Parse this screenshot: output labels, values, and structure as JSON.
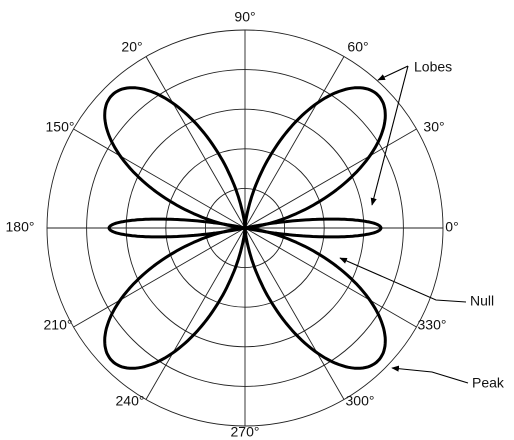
{
  "angle_labels": [
    "90°",
    "60°",
    "30°",
    "0°",
    "330°",
    "300°",
    "270°",
    "240°",
    "210°",
    "180°",
    "150°",
    "20°"
  ],
  "annotations": {
    "lobes": "Lobes",
    "null": "Null",
    "peak": "Peak"
  }
}
